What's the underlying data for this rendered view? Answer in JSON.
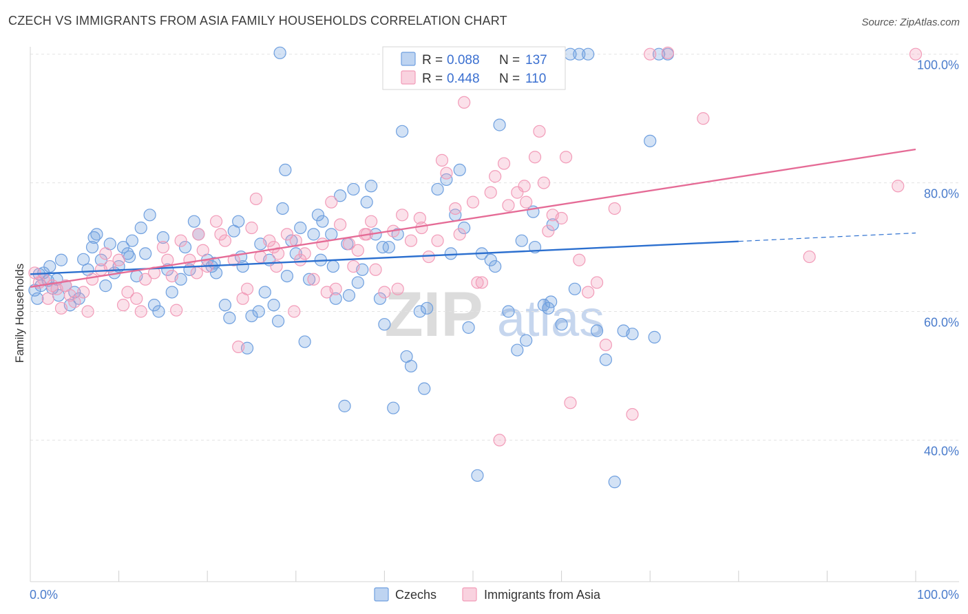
{
  "title": "CZECH VS IMMIGRANTS FROM ASIA FAMILY HOUSEHOLDS CORRELATION CHART",
  "source": "Source: ZipAtlas.com",
  "watermark": {
    "zip": "ZIP",
    "atlas": "atlas"
  },
  "chart_data": {
    "type": "scatter",
    "title": "CZECH VS IMMIGRANTS FROM ASIA FAMILY HOUSEHOLDS CORRELATION CHART",
    "xlabel": "",
    "ylabel": "Family Households",
    "xlim": [
      0,
      100
    ],
    "ylim": [
      18,
      102
    ],
    "x_tick_labels": [
      "0.0%",
      "100.0%"
    ],
    "y_ticks": [
      40,
      60,
      80,
      100
    ],
    "y_tick_labels": [
      "40.0%",
      "60.0%",
      "80.0%",
      "100.0%"
    ],
    "grid": true,
    "legend": [
      {
        "label": "R = ",
        "r": "0.088",
        "n_label": "N = ",
        "n": "137"
      },
      {
        "label": "R = ",
        "r": "0.448",
        "n_label": "N = ",
        "n": "110"
      }
    ],
    "series": [
      {
        "name": "Czechs",
        "color": "#6e9fdf",
        "line_color": "#2b6fcf",
        "trend": {
          "x0": 0,
          "y0": 65.8,
          "x1": 80,
          "y1": 70.9,
          "dash_to": 100,
          "dash_y": 72.2
        },
        "points": [
          [
            0.5,
            63.3
          ],
          [
            1,
            65.8
          ],
          [
            1.5,
            66
          ],
          [
            2,
            64.8
          ],
          [
            2.5,
            63.6
          ],
          [
            3,
            65
          ],
          [
            3.5,
            68
          ],
          [
            4,
            64
          ],
          [
            4.5,
            61
          ],
          [
            5,
            63
          ],
          [
            6,
            68.1
          ],
          [
            6.5,
            66.5
          ],
          [
            7,
            70
          ],
          [
            7.5,
            72
          ],
          [
            8,
            68
          ],
          [
            8.5,
            64
          ],
          [
            9,
            70.5
          ],
          [
            10,
            67
          ],
          [
            10.5,
            70
          ],
          [
            11,
            69
          ],
          [
            11.5,
            71
          ],
          [
            12,
            65.5
          ],
          [
            12.5,
            73
          ],
          [
            13,
            69
          ],
          [
            14,
            61
          ],
          [
            14.5,
            60
          ],
          [
            15,
            71.5
          ],
          [
            16,
            63
          ],
          [
            17,
            65
          ],
          [
            17.5,
            70
          ],
          [
            18,
            66.5
          ],
          [
            19,
            72
          ],
          [
            20,
            68
          ],
          [
            20.5,
            67
          ],
          [
            21,
            66
          ],
          [
            22,
            61
          ],
          [
            22.5,
            59
          ],
          [
            23,
            72.5
          ],
          [
            23.5,
            74
          ],
          [
            24,
            67
          ],
          [
            24.5,
            54.3
          ],
          [
            25,
            59.3
          ],
          [
            26,
            70.5
          ],
          [
            26.5,
            63
          ],
          [
            27,
            68
          ],
          [
            27.5,
            61
          ],
          [
            28,
            58.5
          ],
          [
            28.5,
            76
          ],
          [
            29,
            65.5
          ],
          [
            29.5,
            71
          ],
          [
            30,
            69
          ],
          [
            31,
            55.3
          ],
          [
            31.5,
            65
          ],
          [
            32,
            72
          ],
          [
            32.5,
            75
          ],
          [
            33,
            74
          ],
          [
            34,
            72
          ],
          [
            34.5,
            62
          ],
          [
            35,
            78
          ],
          [
            35.5,
            45.3
          ],
          [
            36,
            62.5
          ],
          [
            37,
            64.5
          ],
          [
            37.5,
            66.5
          ],
          [
            38,
            77
          ],
          [
            38.5,
            79.5
          ],
          [
            39,
            72
          ],
          [
            39.5,
            62
          ],
          [
            40,
            58
          ],
          [
            40.5,
            70
          ],
          [
            41,
            45
          ],
          [
            42,
            88
          ],
          [
            42.5,
            53
          ],
          [
            43,
            51.5
          ],
          [
            44,
            60
          ],
          [
            44.5,
            48
          ],
          [
            45,
            100
          ],
          [
            46,
            79
          ],
          [
            47,
            80.5
          ],
          [
            48,
            75
          ],
          [
            49,
            73
          ],
          [
            49.5,
            57.5
          ],
          [
            50,
            100
          ],
          [
            50.5,
            34.5
          ],
          [
            51,
            69
          ],
          [
            52,
            68
          ],
          [
            53,
            89
          ],
          [
            54,
            60
          ],
          [
            55,
            54
          ],
          [
            55.5,
            71
          ],
          [
            56,
            55.5
          ],
          [
            57,
            70
          ],
          [
            58,
            61
          ],
          [
            58.5,
            60.5
          ],
          [
            59,
            73.5
          ],
          [
            60,
            58
          ],
          [
            61,
            100
          ],
          [
            62,
            100
          ],
          [
            63,
            100
          ],
          [
            64,
            57
          ],
          [
            65,
            52.5
          ],
          [
            66,
            33.5
          ],
          [
            67,
            57
          ],
          [
            68,
            56.5
          ],
          [
            70,
            86.5
          ],
          [
            70.5,
            56
          ],
          [
            71,
            100
          ],
          [
            72,
            100
          ],
          [
            2.2,
            67
          ],
          [
            3.2,
            62.5
          ],
          [
            5.5,
            62
          ],
          [
            7.2,
            71.5
          ],
          [
            9.5,
            66
          ],
          [
            11.2,
            68.5
          ],
          [
            13.5,
            75
          ],
          [
            15.5,
            66.5
          ],
          [
            18.5,
            74
          ],
          [
            20.8,
            67.5
          ],
          [
            23.8,
            68.5
          ],
          [
            25.8,
            60
          ],
          [
            28.8,
            82
          ],
          [
            30.5,
            73
          ],
          [
            32.8,
            68
          ],
          [
            34.2,
            67
          ],
          [
            35.8,
            70.5
          ],
          [
            36.5,
            79
          ],
          [
            39.8,
            70
          ],
          [
            41.5,
            72
          ],
          [
            44.8,
            60.5
          ],
          [
            47.5,
            69
          ],
          [
            48.5,
            82
          ],
          [
            52.5,
            67
          ],
          [
            56.8,
            75.5
          ],
          [
            58.8,
            61.5
          ],
          [
            61.5,
            63.5
          ],
          [
            1.2,
            64
          ],
          [
            0.8,
            62
          ],
          [
            28.2,
            100.2
          ]
        ]
      },
      {
        "name": "Immigrants from Asia",
        "color": "#f29bb8",
        "line_color": "#e56b96",
        "trend": {
          "x0": 0,
          "y0": 63.8,
          "x1": 100,
          "y1": 85.2
        },
        "points": [
          [
            0.5,
            66
          ],
          [
            1,
            64.5
          ],
          [
            1.5,
            65
          ],
          [
            2,
            62
          ],
          [
            2.5,
            64
          ],
          [
            3,
            63.5
          ],
          [
            4,
            64
          ],
          [
            4.5,
            62.5
          ],
          [
            5,
            61.5
          ],
          [
            6,
            63
          ],
          [
            7,
            65
          ],
          [
            8,
            66.5
          ],
          [
            9,
            67
          ],
          [
            10,
            68
          ],
          [
            10.5,
            61
          ],
          [
            11,
            63
          ],
          [
            12,
            62
          ],
          [
            13,
            65
          ],
          [
            14,
            66
          ],
          [
            15,
            70
          ],
          [
            15.5,
            68
          ],
          [
            16,
            65.5
          ],
          [
            17,
            71
          ],
          [
            18,
            68
          ],
          [
            19,
            72
          ],
          [
            19.5,
            69.5
          ],
          [
            20,
            67
          ],
          [
            21,
            74
          ],
          [
            22,
            71
          ],
          [
            23,
            68
          ],
          [
            23.5,
            54.5
          ],
          [
            24,
            62
          ],
          [
            24.5,
            63.5
          ],
          [
            25,
            73
          ],
          [
            25.5,
            77.5
          ],
          [
            26,
            68.5
          ],
          [
            27,
            71
          ],
          [
            27.5,
            70
          ],
          [
            28,
            69
          ],
          [
            29,
            72
          ],
          [
            30,
            71
          ],
          [
            30.5,
            68
          ],
          [
            31,
            69
          ],
          [
            32,
            65
          ],
          [
            33,
            70.5
          ],
          [
            34,
            77
          ],
          [
            34.5,
            63.5
          ],
          [
            35,
            73.5
          ],
          [
            36,
            70.5
          ],
          [
            36.5,
            67
          ],
          [
            37,
            69.5
          ],
          [
            38,
            72
          ],
          [
            38.5,
            74
          ],
          [
            39,
            66.5
          ],
          [
            40,
            63
          ],
          [
            41,
            72.5
          ],
          [
            41.5,
            63.5
          ],
          [
            42,
            75
          ],
          [
            43,
            71
          ],
          [
            44,
            74.5
          ],
          [
            45,
            68.5
          ],
          [
            46,
            71
          ],
          [
            47,
            81.5
          ],
          [
            48,
            76
          ],
          [
            48.5,
            72
          ],
          [
            49,
            92.5
          ],
          [
            50,
            77
          ],
          [
            50.5,
            64.5
          ],
          [
            51,
            64.5
          ],
          [
            52,
            78.5
          ],
          [
            52.5,
            81
          ],
          [
            53,
            40
          ],
          [
            53.5,
            83
          ],
          [
            54,
            76.5
          ],
          [
            55,
            78.5
          ],
          [
            56,
            77
          ],
          [
            57,
            84
          ],
          [
            58,
            80
          ],
          [
            58.5,
            72.5
          ],
          [
            59,
            75
          ],
          [
            60,
            74.5
          ],
          [
            61,
            45.8
          ],
          [
            62,
            68
          ],
          [
            63,
            63
          ],
          [
            64,
            64.5
          ],
          [
            65,
            54.8
          ],
          [
            66,
            76
          ],
          [
            68,
            44
          ],
          [
            70,
            100
          ],
          [
            72,
            100.2
          ],
          [
            76,
            90
          ],
          [
            88,
            68.5
          ],
          [
            98,
            79.5
          ],
          [
            100,
            100
          ],
          [
            3.5,
            60.5
          ],
          [
            6.5,
            60
          ],
          [
            8.5,
            69
          ],
          [
            12.5,
            60
          ],
          [
            16.5,
            60.2
          ],
          [
            18.8,
            66
          ],
          [
            21.5,
            72
          ],
          [
            27.8,
            67
          ],
          [
            29.8,
            60
          ],
          [
            33.5,
            63
          ],
          [
            37.8,
            72
          ],
          [
            44.2,
            73
          ],
          [
            46.5,
            83.5
          ],
          [
            55.8,
            79.5
          ],
          [
            57.5,
            88
          ],
          [
            60.5,
            84
          ]
        ]
      }
    ]
  },
  "bottom_legend": [
    "Czechs",
    "Immigrants from Asia"
  ]
}
